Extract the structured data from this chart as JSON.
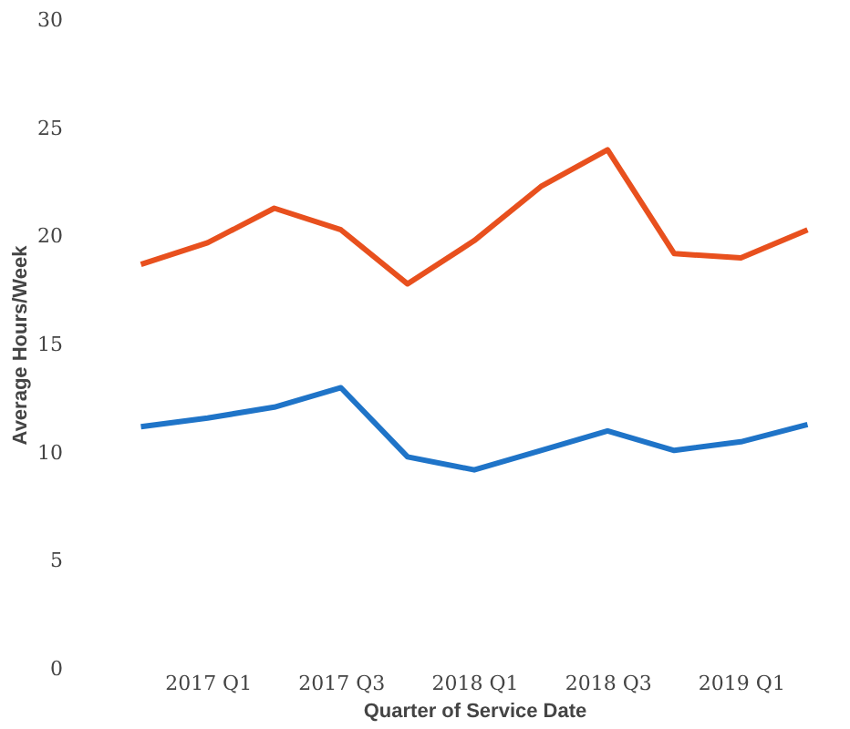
{
  "chart_data": {
    "type": "line",
    "xlabel": "Quarter of Service Date",
    "ylabel": "Average Hours/Week",
    "categories": [
      null,
      "2017 Q1",
      null,
      "2017 Q3",
      null,
      "2018 Q1",
      null,
      "2018 Q3",
      null,
      "2019 Q1",
      null
    ],
    "series": [
      {
        "color": "#e8501e",
        "values": [
          18.7,
          19.7,
          21.3,
          20.3,
          17.8,
          19.8,
          22.3,
          24.0,
          19.2,
          19.0,
          20.3
        ]
      },
      {
        "color": "#1f74c8",
        "values": [
          11.2,
          11.6,
          12.1,
          13.0,
          9.8,
          9.2,
          10.1,
          11.0,
          10.1,
          10.5,
          11.3
        ]
      }
    ],
    "ylim": [
      0,
      30
    ],
    "yticks": [
      0,
      5,
      10,
      15,
      20,
      25,
      30
    ],
    "grid": false,
    "marker": "none",
    "line_style": "solid"
  }
}
